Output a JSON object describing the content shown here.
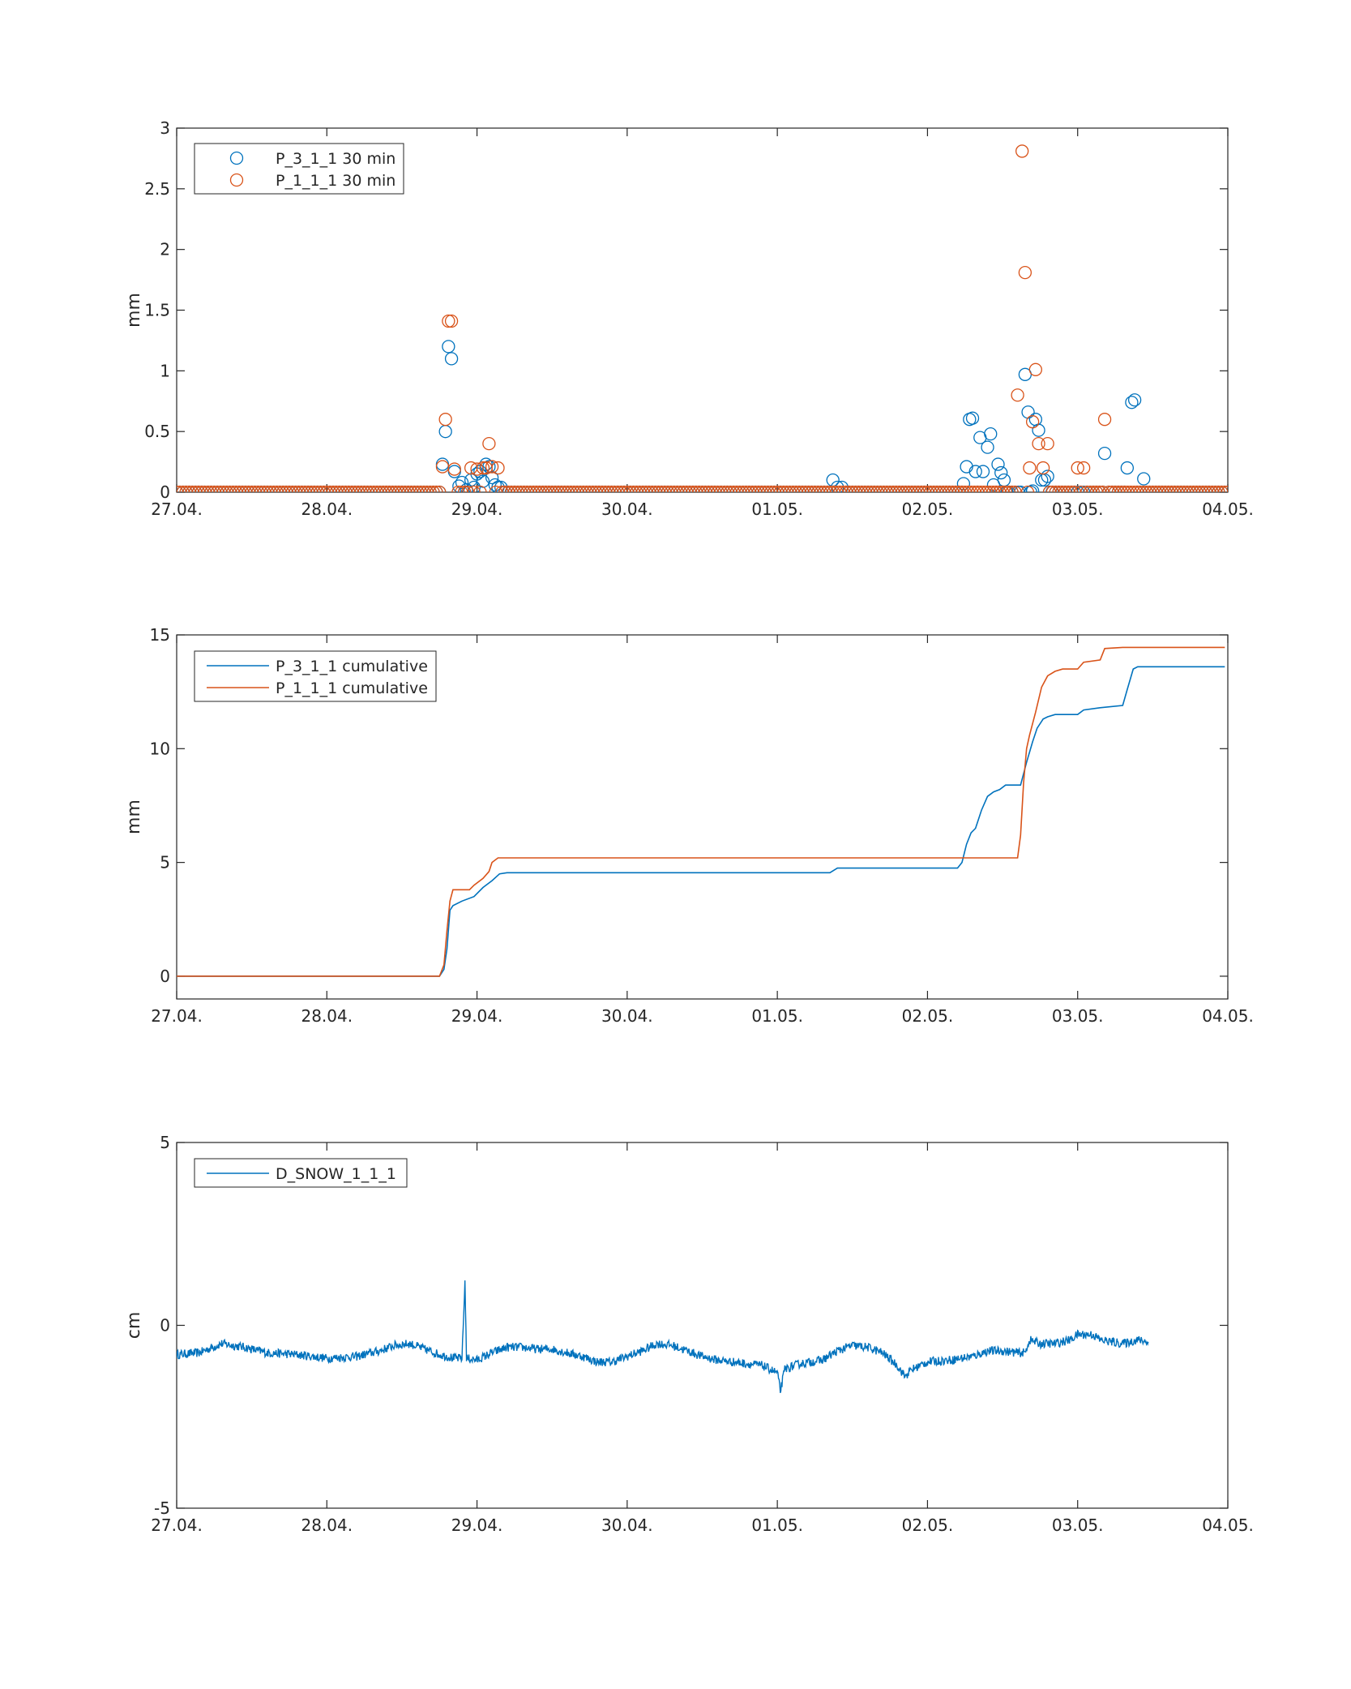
{
  "colors": {
    "series1": "#0072BD",
    "series2": "#D95319",
    "axes": "#262626"
  },
  "chart_data": [
    {
      "type": "scatter",
      "title": "",
      "xlabel": "",
      "ylabel": "mm",
      "xlim": [
        0,
        7
      ],
      "ylim": [
        0,
        3
      ],
      "xticklabels": [
        "27.04.",
        "28.04.",
        "29.04.",
        "30.04.",
        "01.05.",
        "02.05.",
        "03.05.",
        "04.05."
      ],
      "yticks": [
        0,
        0.5,
        1,
        1.5,
        2,
        2.5,
        3
      ],
      "yticklabels": [
        "0",
        "0.5",
        "1",
        "1.5",
        "2",
        "2.5",
        "3"
      ],
      "legend_position": "top-left",
      "series": [
        {
          "name": "P_3_1_1 30 min",
          "color": "#0072BD",
          "points": [
            [
              1.77,
              0.23
            ],
            [
              1.79,
              0.5
            ],
            [
              1.81,
              1.2
            ],
            [
              1.83,
              1.1
            ],
            [
              1.85,
              0.17
            ],
            [
              1.88,
              0.05
            ],
            [
              1.9,
              0.08
            ],
            [
              1.93,
              0.02
            ],
            [
              1.96,
              0.1
            ],
            [
              1.98,
              0.04
            ],
            [
              2.0,
              0.15
            ],
            [
              2.02,
              0.17
            ],
            [
              2.04,
              0.09
            ],
            [
              2.06,
              0.23
            ],
            [
              2.08,
              0.21
            ],
            [
              2.1,
              0.12
            ],
            [
              2.12,
              0.06
            ],
            [
              2.14,
              0.04
            ],
            [
              2.16,
              0.04
            ],
            [
              4.37,
              0.1
            ],
            [
              4.4,
              0.04
            ],
            [
              4.43,
              0.04
            ],
            [
              5.24,
              0.07
            ],
            [
              5.26,
              0.21
            ],
            [
              5.28,
              0.6
            ],
            [
              5.3,
              0.61
            ],
            [
              5.32,
              0.17
            ],
            [
              5.35,
              0.45
            ],
            [
              5.37,
              0.17
            ],
            [
              5.4,
              0.37
            ],
            [
              5.42,
              0.48
            ],
            [
              5.44,
              0.06
            ],
            [
              5.47,
              0.23
            ],
            [
              5.49,
              0.16
            ],
            [
              5.51,
              0.1
            ],
            [
              5.53,
              0.0
            ],
            [
              5.62,
              0.0
            ],
            [
              5.65,
              0.97
            ],
            [
              5.67,
              0.66
            ],
            [
              5.7,
              0.01
            ],
            [
              5.72,
              0.6
            ],
            [
              5.74,
              0.51
            ],
            [
              5.76,
              0.1
            ],
            [
              5.78,
              0.1
            ],
            [
              5.8,
              0.13
            ],
            [
              5.83,
              0.0
            ],
            [
              6.04,
              0.0
            ],
            [
              6.18,
              0.32
            ],
            [
              6.33,
              0.2
            ],
            [
              6.36,
              0.74
            ],
            [
              6.38,
              0.76
            ],
            [
              6.44,
              0.11
            ]
          ]
        },
        {
          "name": "P_1_1_1 30 min",
          "color": "#D95319",
          "points": [
            [
              1.77,
              0.21
            ],
            [
              1.79,
              0.6
            ],
            [
              1.81,
              1.41
            ],
            [
              1.83,
              1.41
            ],
            [
              1.85,
              0.19
            ],
            [
              1.96,
              0.2
            ],
            [
              2.0,
              0.19
            ],
            [
              2.04,
              0.2
            ],
            [
              2.06,
              0.2
            ],
            [
              2.08,
              0.4
            ],
            [
              2.1,
              0.21
            ],
            [
              2.14,
              0.2
            ],
            [
              5.6,
              0.8
            ],
            [
              5.63,
              2.81
            ],
            [
              5.65,
              1.81
            ],
            [
              5.68,
              0.2
            ],
            [
              5.7,
              0.58
            ],
            [
              5.72,
              1.01
            ],
            [
              5.74,
              0.4
            ],
            [
              5.77,
              0.2
            ],
            [
              5.8,
              0.4
            ],
            [
              6.0,
              0.2
            ],
            [
              6.04,
              0.2
            ],
            [
              6.18,
              0.6
            ]
          ]
        }
      ]
    },
    {
      "type": "line",
      "title": "",
      "xlabel": "",
      "ylabel": "mm",
      "xlim": [
        0,
        7
      ],
      "ylim": [
        -1,
        15
      ],
      "xticklabels": [
        "27.04.",
        "28.04.",
        "29.04.",
        "30.04.",
        "01.05.",
        "02.05.",
        "03.05.",
        "04.05."
      ],
      "yticks": [
        0,
        5,
        10,
        15
      ],
      "yticklabels": [
        "0",
        "5",
        "10",
        "15"
      ],
      "legend_position": "top-left",
      "series": [
        {
          "name": "P_3_1_1 cumulative",
          "color": "#0072BD",
          "points": [
            [
              0,
              0
            ],
            [
              1.75,
              0
            ],
            [
              1.78,
              0.3
            ],
            [
              1.8,
              1.2
            ],
            [
              1.82,
              2.9
            ],
            [
              1.84,
              3.1
            ],
            [
              1.9,
              3.3
            ],
            [
              1.98,
              3.5
            ],
            [
              2.04,
              3.9
            ],
            [
              2.1,
              4.2
            ],
            [
              2.15,
              4.5
            ],
            [
              2.2,
              4.55
            ],
            [
              4.35,
              4.55
            ],
            [
              4.4,
              4.75
            ],
            [
              5.2,
              4.75
            ],
            [
              5.23,
              5.0
            ],
            [
              5.26,
              5.8
            ],
            [
              5.29,
              6.3
            ],
            [
              5.32,
              6.5
            ],
            [
              5.36,
              7.3
            ],
            [
              5.4,
              7.9
            ],
            [
              5.44,
              8.1
            ],
            [
              5.48,
              8.2
            ],
            [
              5.52,
              8.4
            ],
            [
              5.62,
              8.4
            ],
            [
              5.66,
              9.4
            ],
            [
              5.7,
              10.3
            ],
            [
              5.73,
              10.9
            ],
            [
              5.77,
              11.3
            ],
            [
              5.8,
              11.4
            ],
            [
              5.85,
              11.5
            ],
            [
              6.0,
              11.5
            ],
            [
              6.04,
              11.7
            ],
            [
              6.15,
              11.8
            ],
            [
              6.3,
              11.9
            ],
            [
              6.33,
              12.6
            ],
            [
              6.37,
              13.5
            ],
            [
              6.4,
              13.6
            ],
            [
              6.98,
              13.6
            ]
          ]
        },
        {
          "name": "P_1_1_1 cumulative",
          "color": "#D95319",
          "points": [
            [
              0,
              0
            ],
            [
              1.75,
              0
            ],
            [
              1.78,
              0.5
            ],
            [
              1.8,
              2.0
            ],
            [
              1.82,
              3.3
            ],
            [
              1.84,
              3.8
            ],
            [
              1.95,
              3.8
            ],
            [
              1.98,
              4.0
            ],
            [
              2.04,
              4.3
            ],
            [
              2.08,
              4.6
            ],
            [
              2.1,
              5.0
            ],
            [
              2.14,
              5.2
            ],
            [
              5.6,
              5.2
            ],
            [
              5.62,
              6.2
            ],
            [
              5.64,
              8.5
            ],
            [
              5.66,
              10.0
            ],
            [
              5.68,
              10.6
            ],
            [
              5.72,
              11.6
            ],
            [
              5.76,
              12.7
            ],
            [
              5.8,
              13.2
            ],
            [
              5.85,
              13.4
            ],
            [
              5.9,
              13.5
            ],
            [
              6.0,
              13.5
            ],
            [
              6.04,
              13.8
            ],
            [
              6.15,
              13.9
            ],
            [
              6.18,
              14.4
            ],
            [
              6.3,
              14.45
            ],
            [
              6.98,
              14.45
            ]
          ]
        }
      ]
    },
    {
      "type": "line",
      "title": "",
      "xlabel": "",
      "ylabel": "cm",
      "xlim": [
        0,
        7
      ],
      "ylim": [
        -5,
        5
      ],
      "xticklabels": [
        "27.04.",
        "28.04.",
        "29.04.",
        "30.04.",
        "01.05.",
        "02.05.",
        "03.05.",
        "04.05."
      ],
      "yticks": [
        -5,
        0,
        5
      ],
      "yticklabels": [
        "-5",
        "0",
        "5"
      ],
      "legend_position": "top-left",
      "series": [
        {
          "name": "D_SNOW_1_1_1",
          "color": "#0072BD",
          "noise": 0.12,
          "points": [
            [
              0,
              -0.8
            ],
            [
              0.15,
              -0.75
            ],
            [
              0.3,
              -0.5
            ],
            [
              0.45,
              -0.6
            ],
            [
              0.6,
              -0.75
            ],
            [
              0.8,
              -0.8
            ],
            [
              1.0,
              -0.9
            ],
            [
              1.2,
              -0.85
            ],
            [
              1.35,
              -0.7
            ],
            [
              1.45,
              -0.55
            ],
            [
              1.55,
              -0.5
            ],
            [
              1.65,
              -0.65
            ],
            [
              1.75,
              -0.8
            ],
            [
              1.85,
              -0.9
            ],
            [
              1.9,
              -0.9
            ],
            [
              1.92,
              1.2
            ],
            [
              1.93,
              -0.9
            ],
            [
              2.0,
              -0.95
            ],
            [
              2.1,
              -0.75
            ],
            [
              2.2,
              -0.6
            ],
            [
              2.3,
              -0.6
            ],
            [
              2.4,
              -0.65
            ],
            [
              2.5,
              -0.65
            ],
            [
              2.6,
              -0.75
            ],
            [
              2.7,
              -0.85
            ],
            [
              2.8,
              -1.0
            ],
            [
              2.9,
              -1.0
            ],
            [
              3.0,
              -0.85
            ],
            [
              3.1,
              -0.7
            ],
            [
              3.2,
              -0.5
            ],
            [
              3.3,
              -0.55
            ],
            [
              3.4,
              -0.7
            ],
            [
              3.5,
              -0.85
            ],
            [
              3.6,
              -0.95
            ],
            [
              3.7,
              -1.0
            ],
            [
              3.8,
              -1.05
            ],
            [
              3.9,
              -1.1
            ],
            [
              4.0,
              -1.3
            ],
            [
              4.02,
              -1.8
            ],
            [
              4.05,
              -1.2
            ],
            [
              4.15,
              -1.05
            ],
            [
              4.3,
              -0.95
            ],
            [
              4.4,
              -0.7
            ],
            [
              4.5,
              -0.55
            ],
            [
              4.6,
              -0.6
            ],
            [
              4.7,
              -0.75
            ],
            [
              4.8,
              -1.1
            ],
            [
              4.85,
              -1.4
            ],
            [
              4.9,
              -1.2
            ],
            [
              5.0,
              -1.0
            ],
            [
              5.15,
              -0.95
            ],
            [
              5.3,
              -0.85
            ],
            [
              5.4,
              -0.7
            ],
            [
              5.5,
              -0.7
            ],
            [
              5.6,
              -0.75
            ],
            [
              5.65,
              -0.75
            ],
            [
              5.68,
              -0.4
            ],
            [
              5.75,
              -0.5
            ],
            [
              5.85,
              -0.5
            ],
            [
              5.95,
              -0.4
            ],
            [
              6.0,
              -0.25
            ],
            [
              6.1,
              -0.25
            ],
            [
              6.15,
              -0.4
            ],
            [
              6.3,
              -0.5
            ],
            [
              6.4,
              -0.4
            ],
            [
              6.47,
              -0.45
            ]
          ]
        }
      ]
    }
  ]
}
